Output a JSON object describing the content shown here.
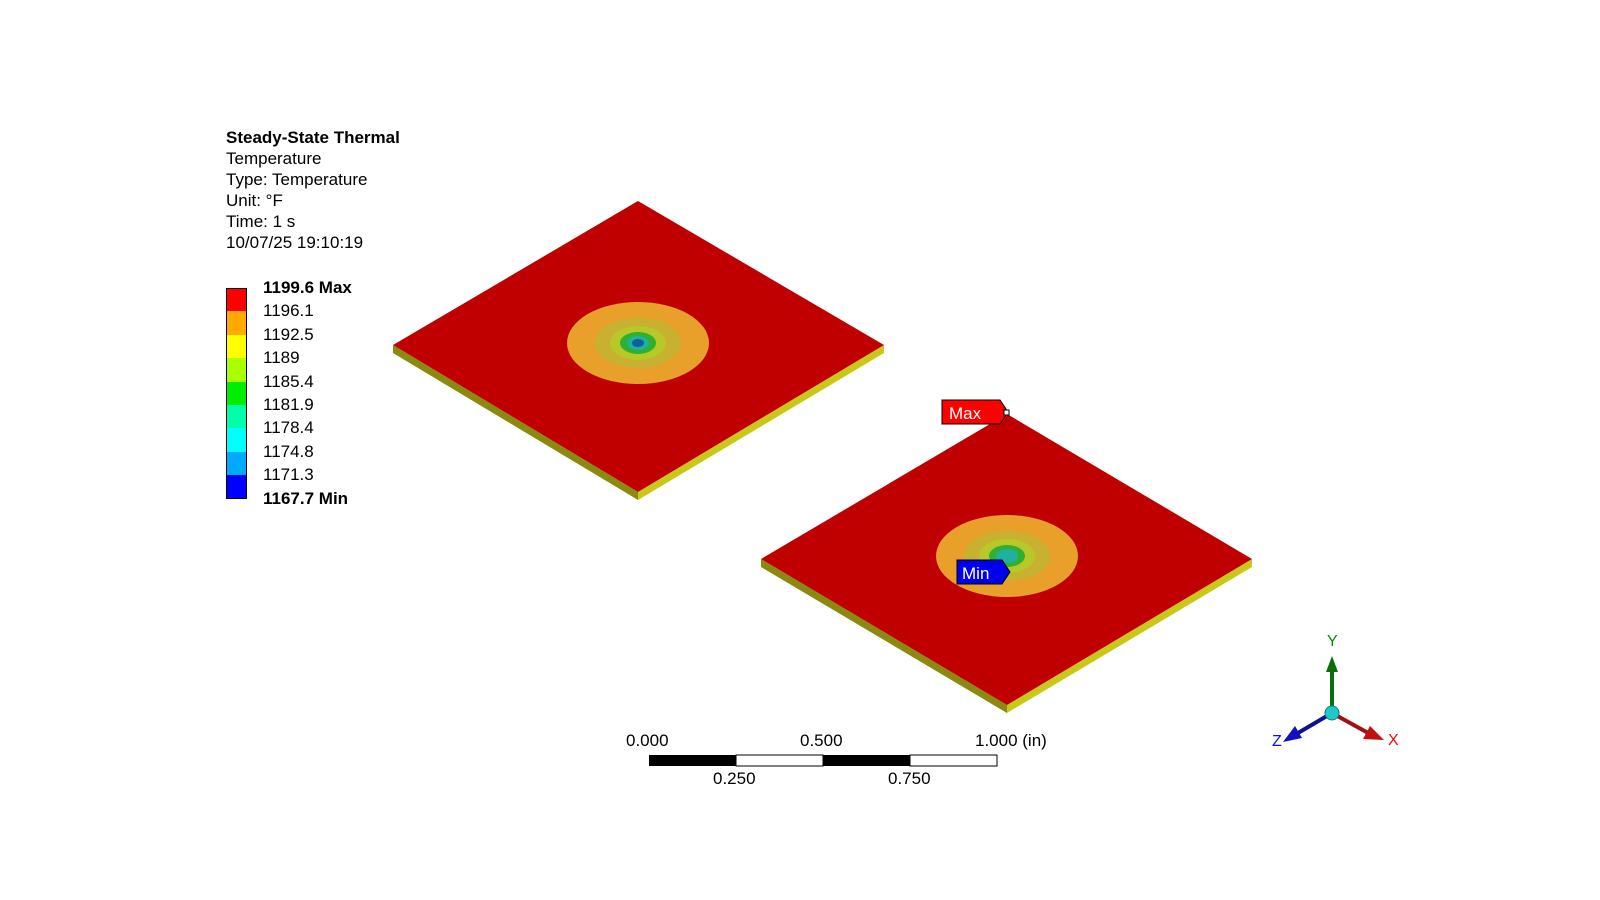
{
  "info": {
    "analysis": "Steady-State Thermal",
    "result": "Temperature",
    "type": "Type: Temperature",
    "unit": "Unit: °F",
    "time": "Time: 1 s",
    "timestamp": "10/07/25 19:10:19"
  },
  "legend": {
    "labels": [
      "1199.6 Max",
      "1196.1",
      "1192.5",
      "1189",
      "1185.4",
      "1181.9",
      "1178.4",
      "1174.8",
      "1171.3",
      "1167.7 Min"
    ],
    "colors": [
      "#ff0000",
      "#ffaa00",
      "#ffff00",
      "#aaff00",
      "#00ee00",
      "#00ffaa",
      "#00ffff",
      "#00aaff",
      "#0000ff"
    ]
  },
  "colors": {
    "plate_top": "#c00000",
    "plate_side": "#8a8a10",
    "plate_side_light": "#c8c818",
    "ring_orange": "#e8a02a",
    "ring_olive": "#c8b030",
    "ring_yellowgreen": "#b8c828",
    "ring_green": "#30b030",
    "ring_teal": "#20b0a0",
    "ring_blue": "#1060a0",
    "max_marker": "#ff0000",
    "min_marker": "#0000ee"
  },
  "markers": {
    "max": "Max",
    "min": "Min"
  },
  "scale_bar": {
    "top_labels": [
      "0.000",
      "0.500",
      "1.000 (in)"
    ],
    "bottom_labels": [
      "0.250",
      "0.750"
    ]
  },
  "triad": {
    "x": "X",
    "y": "Y",
    "z": "Z"
  }
}
